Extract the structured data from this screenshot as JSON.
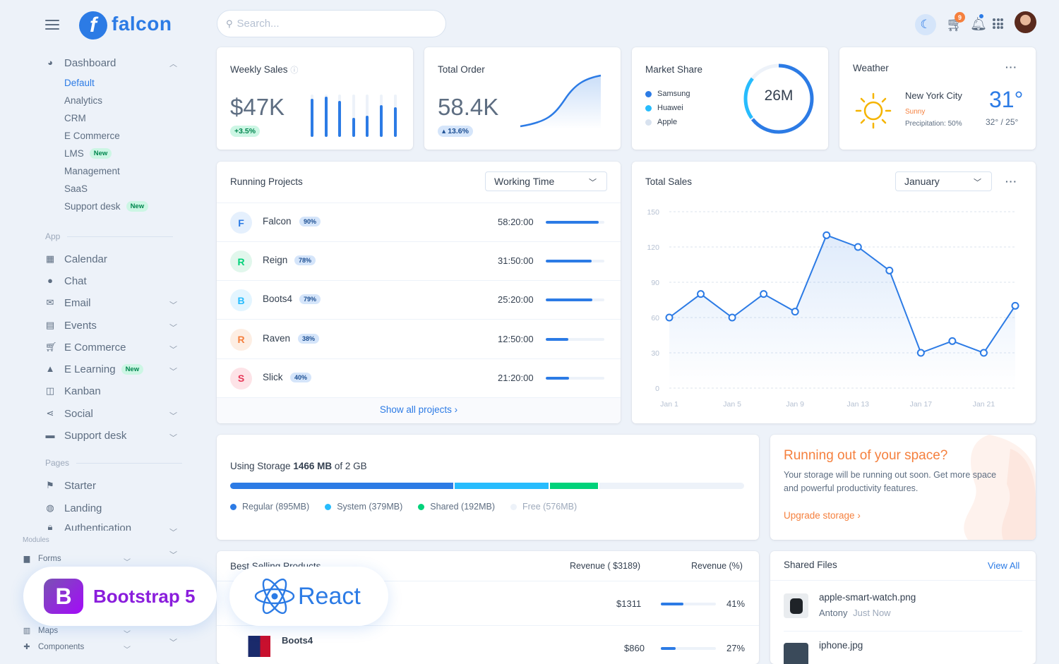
{
  "brand": {
    "name": "falcon",
    "mark": "f"
  },
  "sidebar": {
    "dashboard": {
      "label": "Dashboard",
      "items": [
        {
          "label": "Default",
          "active": true
        },
        {
          "label": "Analytics"
        },
        {
          "label": "CRM"
        },
        {
          "label": "E Commerce"
        },
        {
          "label": "LMS",
          "badge": "New"
        },
        {
          "label": "Management"
        },
        {
          "label": "SaaS"
        },
        {
          "label": "Support desk",
          "badge": "New"
        }
      ]
    },
    "app_label": "App",
    "app_items": [
      {
        "label": "Calendar",
        "icon": "calendar-icon"
      },
      {
        "label": "Chat",
        "icon": "chat-icon"
      },
      {
        "label": "Email",
        "icon": "email-icon"
      },
      {
        "label": "Events",
        "icon": "events-icon"
      },
      {
        "label": "E Commerce",
        "icon": "cart-icon"
      },
      {
        "label": "E Learning",
        "icon": "graduation-icon",
        "badge": "New"
      },
      {
        "label": "Kanban",
        "icon": "kanban-icon"
      },
      {
        "label": "Social",
        "icon": "share-icon"
      },
      {
        "label": "Support desk",
        "icon": "ticket-icon"
      }
    ],
    "pages_label": "Pages",
    "pages_items": [
      {
        "label": "Starter",
        "icon": "flag-icon"
      },
      {
        "label": "Landing",
        "icon": "globe-icon"
      },
      {
        "label": "Authentication",
        "icon": "lock-icon"
      }
    ],
    "modules_label": "Modules",
    "modules_items": [
      {
        "label": "Forms"
      },
      {
        "label": "Maps"
      },
      {
        "label": "Components"
      }
    ]
  },
  "search": {
    "placeholder": "Search..."
  },
  "topbar": {
    "cart_count": "9"
  },
  "weekly_sales": {
    "title": "Weekly Sales",
    "value": "$47K",
    "change": "+3.5%",
    "bars": [
      0.9,
      0.95,
      0.85,
      0.45,
      0.5,
      0.75,
      0.7
    ]
  },
  "total_order": {
    "title": "Total Order",
    "value": "58.4K",
    "change": "13.6%"
  },
  "market_share": {
    "title": "Market Share",
    "value": "26M",
    "legend": [
      {
        "label": "Samsung",
        "color": "#2c7be5"
      },
      {
        "label": "Huawei",
        "color": "#27bcfd"
      },
      {
        "label": "Apple",
        "color": "#d8e2ef"
      }
    ]
  },
  "weather": {
    "title": "Weather",
    "city": "New York City",
    "condition": "Sunny",
    "precipitation": "Precipitation: 50%",
    "temp": "31°",
    "range": "32° / 25°"
  },
  "running_projects": {
    "title": "Running Projects",
    "filter": "Working Time",
    "projects": [
      {
        "letter": "F",
        "name": "Falcon",
        "pct": "90%",
        "time": "58:20:00",
        "progress": 0.9,
        "color": "#2c7be5",
        "bg": "#e5f0fd"
      },
      {
        "letter": "R",
        "name": "Reign",
        "pct": "78%",
        "time": "31:50:00",
        "progress": 0.78,
        "color": "#00d27a",
        "bg": "#e1f7ec"
      },
      {
        "letter": "B",
        "name": "Boots4",
        "pct": "79%",
        "time": "25:20:00",
        "progress": 0.79,
        "color": "#27bcfd",
        "bg": "#e3f5ff"
      },
      {
        "letter": "R",
        "name": "Raven",
        "pct": "38%",
        "time": "12:50:00",
        "progress": 0.38,
        "color": "#f5803e",
        "bg": "#fdeee3"
      },
      {
        "letter": "S",
        "name": "Slick",
        "pct": "40%",
        "time": "21:20:00",
        "progress": 0.4,
        "color": "#e63757",
        "bg": "#fde3e7"
      }
    ],
    "footer": "Show all projects"
  },
  "total_sales": {
    "title": "Total Sales",
    "filter": "January"
  },
  "chart_data": {
    "type": "line",
    "title": "Total Sales",
    "x": [
      "Jan 1",
      "Jan 3",
      "Jan 5",
      "Jan 7",
      "Jan 9",
      "Jan 11",
      "Jan 13",
      "Jan 15",
      "Jan 17",
      "Jan 19",
      "Jan 21",
      "Jan 23"
    ],
    "values": [
      60,
      80,
      60,
      80,
      65,
      130,
      120,
      100,
      30,
      40,
      30,
      70
    ],
    "tick_labels_x": [
      "Jan 1",
      "Jan 5",
      "Jan 9",
      "Jan 13",
      "Jan 17",
      "Jan 21"
    ],
    "tick_labels_y": [
      "0",
      "30",
      "60",
      "90",
      "120",
      "150"
    ],
    "ylim": [
      0,
      150
    ],
    "grid": true,
    "color": "#2c7be5"
  },
  "storage": {
    "label_prefix": "Using Storage",
    "used": "1466 MB",
    "label_suffix": "of 2 GB",
    "segments": [
      {
        "label": "Regular (895MB)",
        "fraction": 0.437,
        "color": "#2c7be5"
      },
      {
        "label": "System (379MB)",
        "fraction": 0.185,
        "color": "#27bcfd"
      },
      {
        "label": "Shared (192MB)",
        "fraction": 0.094,
        "color": "#00d27a"
      },
      {
        "label": "Free (576MB)",
        "fraction": 0.284,
        "color": "#edf2f9"
      }
    ]
  },
  "space_alert": {
    "title": "Running out of your space?",
    "body": "Your storage will be running out soon. Get more space and powerful productivity features.",
    "link": "Upgrade storage"
  },
  "best_selling": {
    "title": "Best Selling Products",
    "col_revenue": "Revenue ( $3189)",
    "col_pct": "Revenue (%)",
    "rows": [
      {
        "name": "",
        "revenue": "$1311",
        "pct": "41%",
        "progress": 0.41
      },
      {
        "name": "Boots4",
        "revenue": "$860",
        "pct": "27%",
        "progress": 0.27
      }
    ]
  },
  "shared_files": {
    "title": "Shared Files",
    "view_all": "View All",
    "files": [
      {
        "name": "apple-smart-watch.png",
        "user": "Antony",
        "time": "Just Now"
      },
      {
        "name": "iphone.jpg",
        "user": "",
        "time": ""
      }
    ]
  },
  "overlays": {
    "bootstrap": "Bootstrap 5",
    "bootstrap_mark": "B",
    "react": "React"
  }
}
